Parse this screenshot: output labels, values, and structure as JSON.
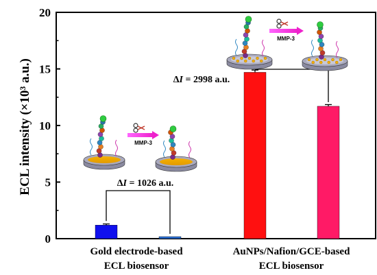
{
  "chart_data": {
    "type": "bar",
    "ylabel": "ECL intensity (×10³ a.u.)",
    "ylim": [
      0,
      20
    ],
    "yticks": [
      0,
      5,
      10,
      15,
      20
    ],
    "groups": [
      {
        "label_lines": [
          "Gold electrode-based",
          "ECL biosensor"
        ]
      },
      {
        "label_lines": [
          "AuNPs/Nafion/GCE-based",
          "ECL biosensor"
        ]
      }
    ],
    "bars": [
      {
        "group": 0,
        "value": 1.2,
        "error": 0.1,
        "color": "#1010ee"
      },
      {
        "group": 0,
        "value": 0.18,
        "error": 0.0,
        "color": "#2a6fd6"
      },
      {
        "group": 1,
        "value": 14.7,
        "error": 0.2,
        "color": "#ff1010"
      },
      {
        "group": 1,
        "value": 11.7,
        "error": 0.15,
        "color": "#ff1a66"
      }
    ],
    "annotations": [
      {
        "text": "ΔI = 1026 a.u.",
        "between": [
          0,
          1
        ]
      },
      {
        "text": "ΔI = 2998 a.u.",
        "between": [
          2,
          3
        ]
      }
    ],
    "enzyme_label": "MMP-3"
  }
}
